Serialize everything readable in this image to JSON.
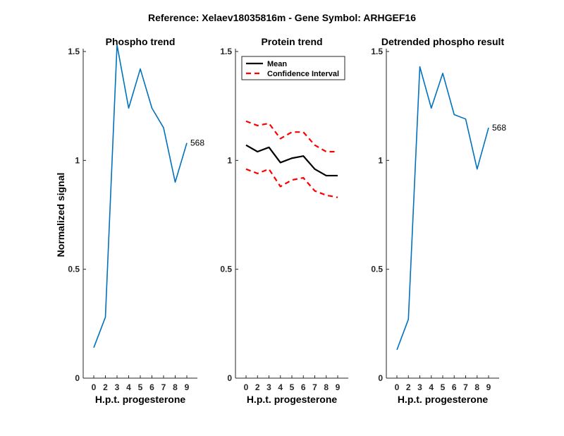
{
  "figure": {
    "title": "Reference:  Xelaev18035816m - Gene Symbol:  ARHGEF16"
  },
  "colors": {
    "phospho": "#0072BD",
    "mean": "#000000",
    "ci": "#FF0000",
    "axis": "#262626"
  },
  "chart_data": [
    {
      "type": "line",
      "title": "Phospho trend",
      "xlabel": "H.p.t. progesterone",
      "ylabel": "Normalized signal",
      "x": [
        0,
        2,
        3,
        4,
        5,
        6,
        7,
        8,
        9
      ],
      "xticks": [
        "0",
        "2",
        "3",
        "4",
        "5",
        "6",
        "7",
        "8",
        "9"
      ],
      "ylim": [
        0,
        1.5
      ],
      "yticks": [
        "0",
        "0.5",
        "1",
        "1.5"
      ],
      "series": [
        {
          "values": [
            0.14,
            0.28,
            1.53,
            1.24,
            1.42,
            1.24,
            1.15,
            0.9,
            1.08
          ]
        }
      ],
      "annotation": "568"
    },
    {
      "type": "line",
      "title": "Protein trend",
      "xlabel": "H.p.t. progesterone",
      "ylabel": "",
      "x": [
        0,
        2,
        3,
        4,
        5,
        6,
        7,
        8,
        9
      ],
      "xticks": [
        "0",
        "2",
        "3",
        "4",
        "5",
        "6",
        "7",
        "8",
        "9"
      ],
      "ylim": [
        0,
        1.5
      ],
      "yticks": [
        "0",
        "0.5",
        "1",
        "1.5"
      ],
      "legend": {
        "placement": "top-left",
        "mean_label": "Mean",
        "ci_label": "Confidence Interval"
      },
      "series": [
        {
          "name": "Mean",
          "values": [
            1.07,
            1.04,
            1.06,
            0.99,
            1.01,
            1.02,
            0.96,
            0.93,
            0.93
          ]
        },
        {
          "name": "Confidence Interval",
          "values": [
            1.18,
            1.16,
            1.17,
            1.1,
            1.13,
            1.13,
            1.07,
            1.04,
            1.04
          ]
        },
        {
          "name": "Confidence Interval",
          "values": [
            0.96,
            0.94,
            0.96,
            0.88,
            0.91,
            0.92,
            0.86,
            0.84,
            0.83
          ]
        }
      ]
    },
    {
      "type": "line",
      "title": "Detrended phospho result",
      "xlabel": "H.p.t. progesterone",
      "ylabel": "",
      "x": [
        0,
        2,
        3,
        4,
        5,
        6,
        7,
        8,
        9
      ],
      "xticks": [
        "0",
        "2",
        "3",
        "4",
        "5",
        "6",
        "7",
        "8",
        "9"
      ],
      "ylim": [
        0,
        1.5
      ],
      "yticks": [
        "0",
        "0.5",
        "1",
        "1.5"
      ],
      "series": [
        {
          "values": [
            0.13,
            0.27,
            1.43,
            1.24,
            1.4,
            1.21,
            1.19,
            0.96,
            1.15
          ]
        }
      ],
      "annotation": "568"
    }
  ]
}
